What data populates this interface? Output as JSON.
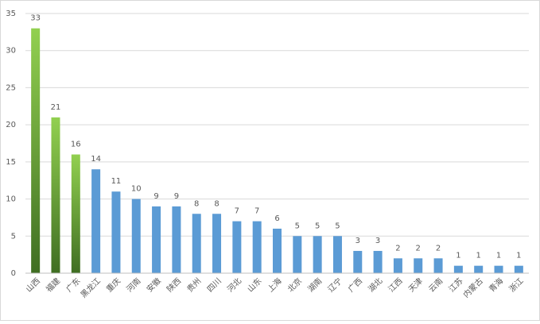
{
  "chart_data": {
    "type": "bar",
    "categories": [
      "山西",
      "福建",
      "广东",
      "黑龙江",
      "重庆",
      "河南",
      "安徽",
      "陕西",
      "贵州",
      "四川",
      "河北",
      "山东",
      "上海",
      "北京",
      "湖南",
      "辽宁",
      "广西",
      "湖北",
      "江西",
      "天津",
      "云南",
      "江苏",
      "内蒙古",
      "青海",
      "浙江"
    ],
    "values": [
      33,
      21,
      16,
      14,
      11,
      10,
      9,
      9,
      8,
      8,
      7,
      7,
      6,
      5,
      5,
      5,
      3,
      3,
      2,
      2,
      2,
      1,
      1,
      1,
      1
    ],
    "colors": [
      "#92d050",
      "#92d050",
      "#92d050",
      "#5b9bd5",
      "#5b9bd5",
      "#5b9bd5",
      "#5b9bd5",
      "#5b9bd5",
      "#5b9bd5",
      "#5b9bd5",
      "#5b9bd5",
      "#5b9bd5",
      "#5b9bd5",
      "#5b9bd5",
      "#5b9bd5",
      "#5b9bd5",
      "#5b9bd5",
      "#5b9bd5",
      "#5b9bd5",
      "#5b9bd5",
      "#5b9bd5",
      "#5b9bd5",
      "#5b9bd5",
      "#5b9bd5",
      "#5b9bd5"
    ],
    "ylim": [
      0,
      35
    ],
    "yticks": [
      0,
      5,
      10,
      15,
      20,
      25,
      30,
      35
    ],
    "grid": true
  }
}
